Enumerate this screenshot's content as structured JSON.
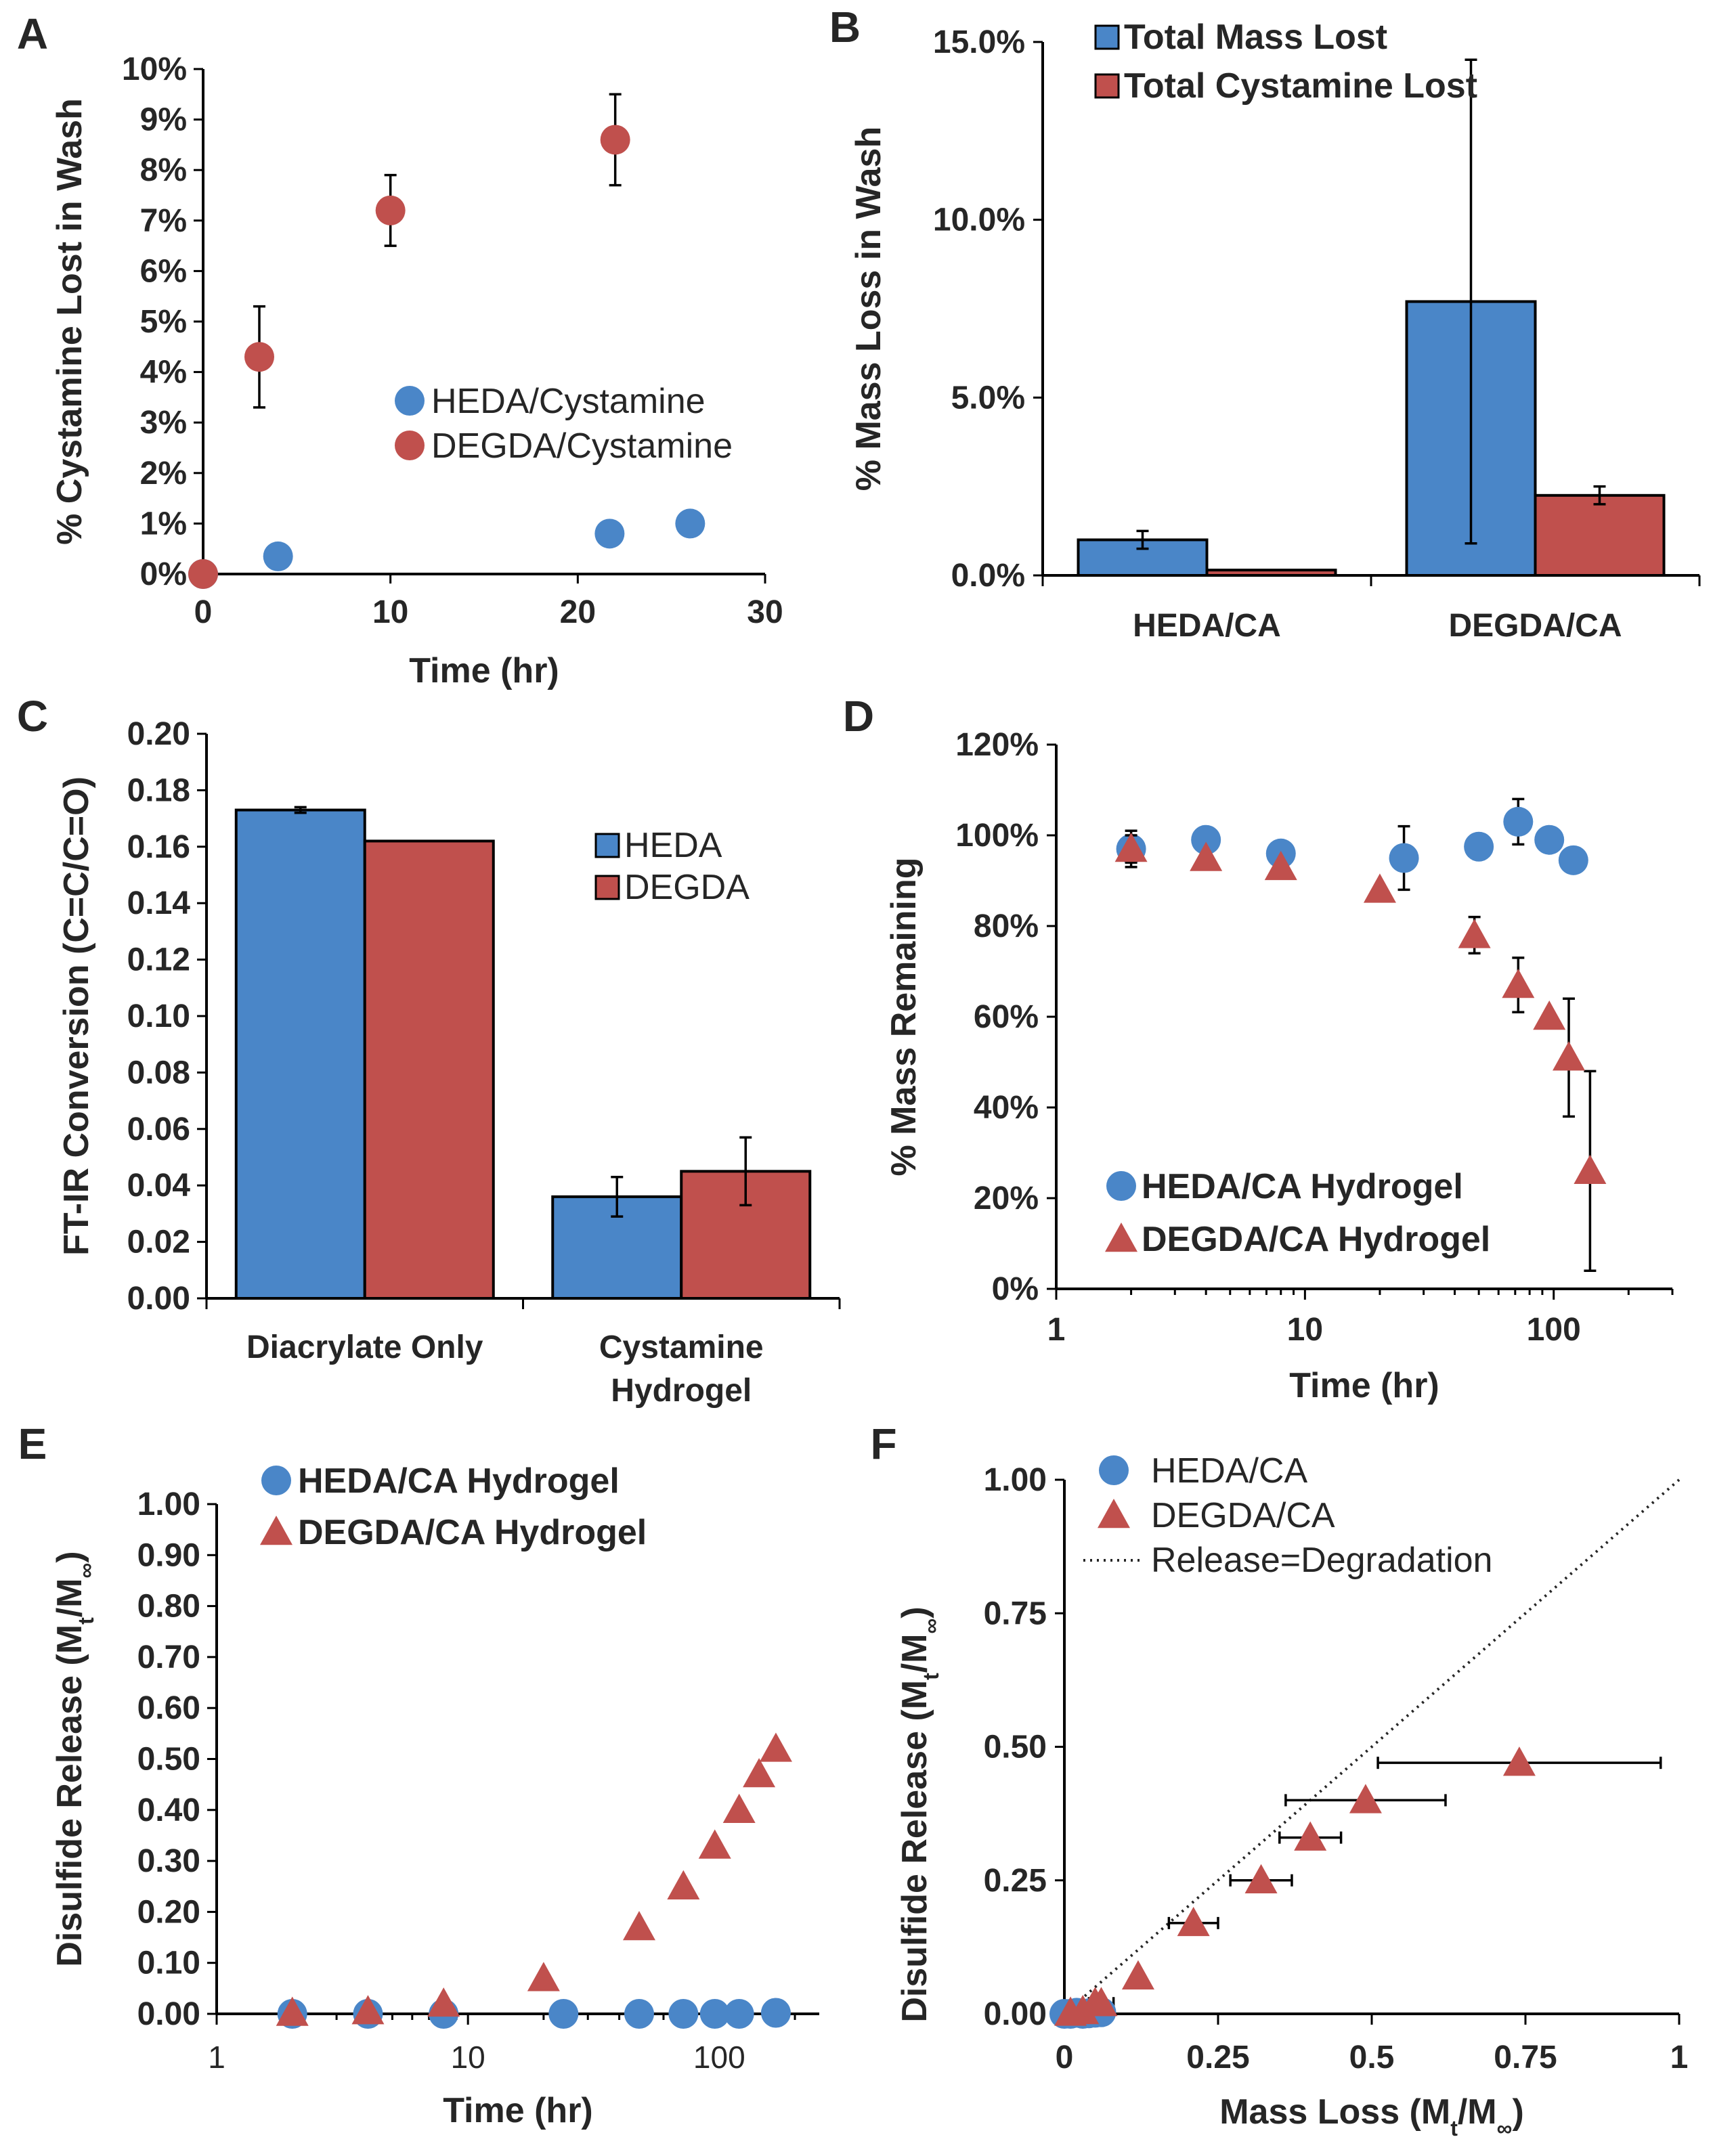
{
  "colors": {
    "blue": "#4a86c8",
    "red": "#c0504d",
    "axis": "#000000"
  },
  "chart_data": [
    {
      "id": "A",
      "panel_label": "A",
      "type": "scatter",
      "title": "",
      "xlabel": "Time (hr)",
      "ylabel": "% Cystamine Lost in Wash",
      "xlim": [
        0,
        30
      ],
      "ylim": [
        0,
        10
      ],
      "x_ticks": [
        "0",
        "10",
        "20",
        "30"
      ],
      "y_ticks": [
        "0%",
        "1%",
        "2%",
        "3%",
        "4%",
        "5%",
        "6%",
        "7%",
        "8%",
        "9%",
        "10%"
      ],
      "legend_position": "center-right",
      "series": [
        {
          "name": "HEDA/Cystamine",
          "color": "#4a86c8",
          "marker": "circle",
          "x": [
            0,
            4,
            21.7,
            26
          ],
          "y": [
            0,
            0.35,
            0.8,
            1.0
          ],
          "err": [
            0,
            0,
            0,
            0
          ]
        },
        {
          "name": "DEGDA/Cystamine",
          "color": "#c0504d",
          "marker": "circle",
          "x": [
            0,
            3,
            10,
            22
          ],
          "y": [
            0,
            4.3,
            7.2,
            8.6
          ],
          "err": [
            0,
            1.0,
            0.7,
            0.9
          ]
        }
      ]
    },
    {
      "id": "B",
      "panel_label": "B",
      "type": "bar",
      "title": "",
      "xlabel": "",
      "ylabel": "% Mass Loss in Wash",
      "ylim": [
        0,
        15
      ],
      "categories": [
        "HEDA/CA",
        "DEGDA/CA"
      ],
      "y_ticks": [
        "0.0%",
        "5.0%",
        "10.0%",
        "15.0%"
      ],
      "legend_position": "top-left",
      "series": [
        {
          "name": "Total Mass Lost",
          "color": "#4a86c8",
          "values": [
            1.0,
            7.7
          ],
          "err": [
            0.25,
            6.8
          ]
        },
        {
          "name": "Total Cystamine Lost",
          "color": "#c0504d",
          "values": [
            0.15,
            2.25
          ],
          "err": [
            0,
            0.25
          ]
        }
      ]
    },
    {
      "id": "C",
      "panel_label": "C",
      "type": "bar",
      "title": "",
      "xlabel": "",
      "ylabel": "FT-IR Conversion (C=C/C=O)",
      "ylim": [
        0,
        0.2
      ],
      "categories": [
        "Diacrylate Only",
        "Cystamine Hydrogel"
      ],
      "category_lines": [
        [
          "Diacrylate Only"
        ],
        [
          "Cystamine",
          "Hydrogel"
        ]
      ],
      "y_ticks": [
        "0.00",
        "0.02",
        "0.04",
        "0.06",
        "0.08",
        "0.10",
        "0.12",
        "0.14",
        "0.16",
        "0.18",
        "0.20"
      ],
      "legend_position": "top-right",
      "series": [
        {
          "name": "HEDA",
          "color": "#4a86c8",
          "values": [
            0.173,
            0.036
          ],
          "err": [
            0.001,
            0.007
          ]
        },
        {
          "name": "DEGDA",
          "color": "#c0504d",
          "values": [
            0.162,
            0.045
          ],
          "err": [
            0,
            0.012
          ]
        }
      ]
    },
    {
      "id": "D",
      "panel_label": "D",
      "type": "scatter",
      "title": "",
      "xlabel": "Time (hr)",
      "ylabel": "% Mass Remaining",
      "x_scale": "log",
      "xlim": [
        1,
        300
      ],
      "ylim": [
        0,
        120
      ],
      "x_ticks": [
        "1",
        "10",
        "100"
      ],
      "y_ticks": [
        "0%",
        "20%",
        "40%",
        "60%",
        "80%",
        "100%",
        "120%"
      ],
      "legend_position": "bottom-left",
      "series": [
        {
          "name": "HEDA/CA Hydrogel",
          "color": "#4a86c8",
          "marker": "circle",
          "x": [
            2,
            4,
            8,
            25,
            50,
            72,
            96,
            120
          ],
          "y": [
            97,
            99,
            96,
            95,
            97.5,
            103,
            99,
            94.5
          ],
          "err": [
            4,
            0,
            0,
            7,
            0,
            5,
            0,
            0
          ]
        },
        {
          "name": "DEGDA/CA Hydrogel",
          "color": "#c0504d",
          "marker": "triangle",
          "x": [
            2,
            4,
            8,
            20,
            48,
            72,
            96,
            115,
            140
          ],
          "y": [
            97,
            95,
            93,
            88,
            78,
            67,
            60,
            51,
            26
          ],
          "err": [
            3,
            0,
            0,
            0,
            4,
            6,
            0,
            13,
            22
          ]
        }
      ]
    },
    {
      "id": "E",
      "panel_label": "E",
      "type": "scatter",
      "title": "",
      "xlabel": "Time (hr)",
      "ylabel": "Disulfide Release (M_t/M_∞)",
      "x_scale": "log",
      "xlim": [
        1,
        250
      ],
      "ylim": [
        0,
        1
      ],
      "x_ticks": [
        "1",
        "10",
        "100"
      ],
      "y_ticks": [
        "0.00",
        "0.10",
        "0.20",
        "0.30",
        "0.40",
        "0.50",
        "0.60",
        "0.70",
        "0.80",
        "0.90",
        "1.00"
      ],
      "legend_position": "top-left",
      "series": [
        {
          "name": "HEDA/CA Hydrogel",
          "color": "#4a86c8",
          "marker": "circle",
          "x": [
            2,
            4,
            8,
            24,
            48,
            72,
            96,
            120,
            168
          ],
          "y": [
            0,
            0,
            0,
            0,
            0,
            0,
            0,
            0,
            0.002
          ]
        },
        {
          "name": "DEGDA/CA Hydrogel",
          "color": "#c0504d",
          "marker": "triangle",
          "x": [
            2,
            4,
            8,
            20,
            48,
            72,
            96,
            120,
            144,
            168
          ],
          "y": [
            0.002,
            0.005,
            0.02,
            0.07,
            0.17,
            0.25,
            0.33,
            0.4,
            0.47,
            0.52
          ]
        }
      ]
    },
    {
      "id": "F",
      "panel_label": "F",
      "type": "scatter",
      "title": "",
      "xlabel": "Mass Loss (M_t/M_∞)",
      "ylabel": "Disulfide Release (M_t/M_∞)",
      "xlim": [
        0,
        1
      ],
      "ylim": [
        0,
        1
      ],
      "x_ticks": [
        "0",
        "0.25",
        "0.5",
        "0.75",
        "1"
      ],
      "y_ticks": [
        "0.00",
        "0.25",
        "0.50",
        "0.75",
        "1.00"
      ],
      "legend_position": "top-left",
      "series": [
        {
          "name": "HEDA/CA",
          "color": "#4a86c8",
          "marker": "circle",
          "x": [
            0,
            0.01,
            0.02,
            0.03,
            0.04,
            0.05,
            0.06
          ],
          "y": [
            0,
            0,
            0.002,
            0,
            0.001,
            0.002,
            0.003
          ]
        },
        {
          "name": "DEGDA/CA",
          "color": "#c0504d",
          "marker": "triangle",
          "x": [
            0.01,
            0.03,
            0.05,
            0.06,
            0.12,
            0.21,
            0.32,
            0.4,
            0.49,
            0.74
          ],
          "y": [
            0.002,
            0.005,
            0.02,
            0.02,
            0.07,
            0.17,
            0.25,
            0.33,
            0.4,
            0.47
          ],
          "xerr": [
            0,
            0,
            0,
            0.02,
            0,
            0.04,
            0.05,
            0.05,
            0.13,
            0.23
          ]
        },
        {
          "name": "Release=Degradation",
          "color": "#262626",
          "line": "dotted",
          "x": [
            0,
            1
          ],
          "y": [
            0,
            1
          ]
        }
      ]
    }
  ]
}
